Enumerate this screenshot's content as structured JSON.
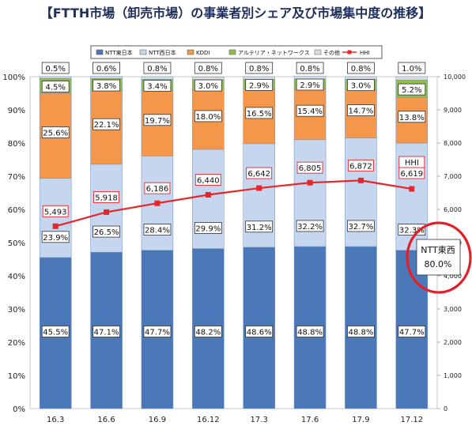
{
  "title": "【FTTH市場（卸売市場）の事業者別シェア及び市場集中度の推移】",
  "chart_data": {
    "type": "bar",
    "stacked": true,
    "categories": [
      "16.3",
      "16.6",
      "16.9",
      "16.12",
      "17.3",
      "17.6",
      "17.9",
      "17.12"
    ],
    "series": [
      {
        "name": "NTT東日本",
        "color": "#4a78b8",
        "values": [
          45.5,
          47.1,
          47.7,
          48.2,
          48.6,
          48.8,
          48.8,
          47.7
        ],
        "labels": [
          "45.5%",
          "47.1%",
          "47.7%",
          "48.2%",
          "48.6%",
          "48.8%",
          "48.8%",
          "47.7%"
        ]
      },
      {
        "name": "NTT西日本",
        "color": "#c5d6ee",
        "values": [
          23.9,
          26.5,
          28.4,
          29.9,
          31.2,
          32.2,
          32.7,
          32.3
        ],
        "labels": [
          "23.9%",
          "26.5%",
          "28.4%",
          "29.9%",
          "31.2%",
          "32.2%",
          "32.7%",
          "32.3%"
        ]
      },
      {
        "name": "KDDI",
        "color": "#f4974a",
        "values": [
          25.6,
          22.1,
          19.7,
          18.0,
          16.5,
          15.4,
          14.7,
          13.8
        ],
        "labels": [
          "25.6%",
          "22.1%",
          "19.7%",
          "18.0%",
          "16.5%",
          "15.4%",
          "14.7%",
          "13.8%"
        ]
      },
      {
        "name": "アルテリア・ネットワークス",
        "color": "#8fbf4a",
        "values": [
          4.5,
          3.8,
          3.4,
          3.0,
          2.9,
          2.9,
          3.0,
          5.2
        ],
        "labels": [
          "4.5%",
          "3.8%",
          "3.4%",
          "3.0%",
          "2.9%",
          "2.9%",
          "3.0%",
          "5.2%"
        ]
      },
      {
        "name": "その他",
        "color": "#dcdcdc",
        "values": [
          0.5,
          0.6,
          0.8,
          0.8,
          0.8,
          0.8,
          0.8,
          1.0
        ],
        "labels": [
          "0.5%",
          "0.6%",
          "0.8%",
          "0.8%",
          "0.8%",
          "0.8%",
          "0.8%",
          "1.0%"
        ]
      }
    ],
    "line_series": {
      "name": "HHI",
      "color": "#e8262a",
      "axis": "right",
      "values": [
        5493,
        5918,
        6186,
        6440,
        6642,
        6805,
        6872,
        6619
      ],
      "labels": [
        "5,493",
        "5,918",
        "6,186",
        "6,440",
        "6,642",
        "6,805",
        "6,872",
        "6,619"
      ]
    },
    "y_left": {
      "range": [
        0,
        100
      ],
      "ticks": [
        "0%",
        "10%",
        "20%",
        "30%",
        "40%",
        "50%",
        "60%",
        "70%",
        "80%",
        "90%",
        "100%"
      ]
    },
    "y_right": {
      "range": [
        0,
        10000
      ],
      "ticks": [
        "0",
        "1,000",
        "2,000",
        "3,000",
        "4,000",
        "5,000",
        "6,000",
        "7,000",
        "8,000",
        "9,000",
        "10,000"
      ]
    },
    "annotations": {
      "hhi_tag": "HHI",
      "callout_line1": "NTT東西",
      "callout_line2": "80.0%"
    },
    "legend_position": "top"
  }
}
